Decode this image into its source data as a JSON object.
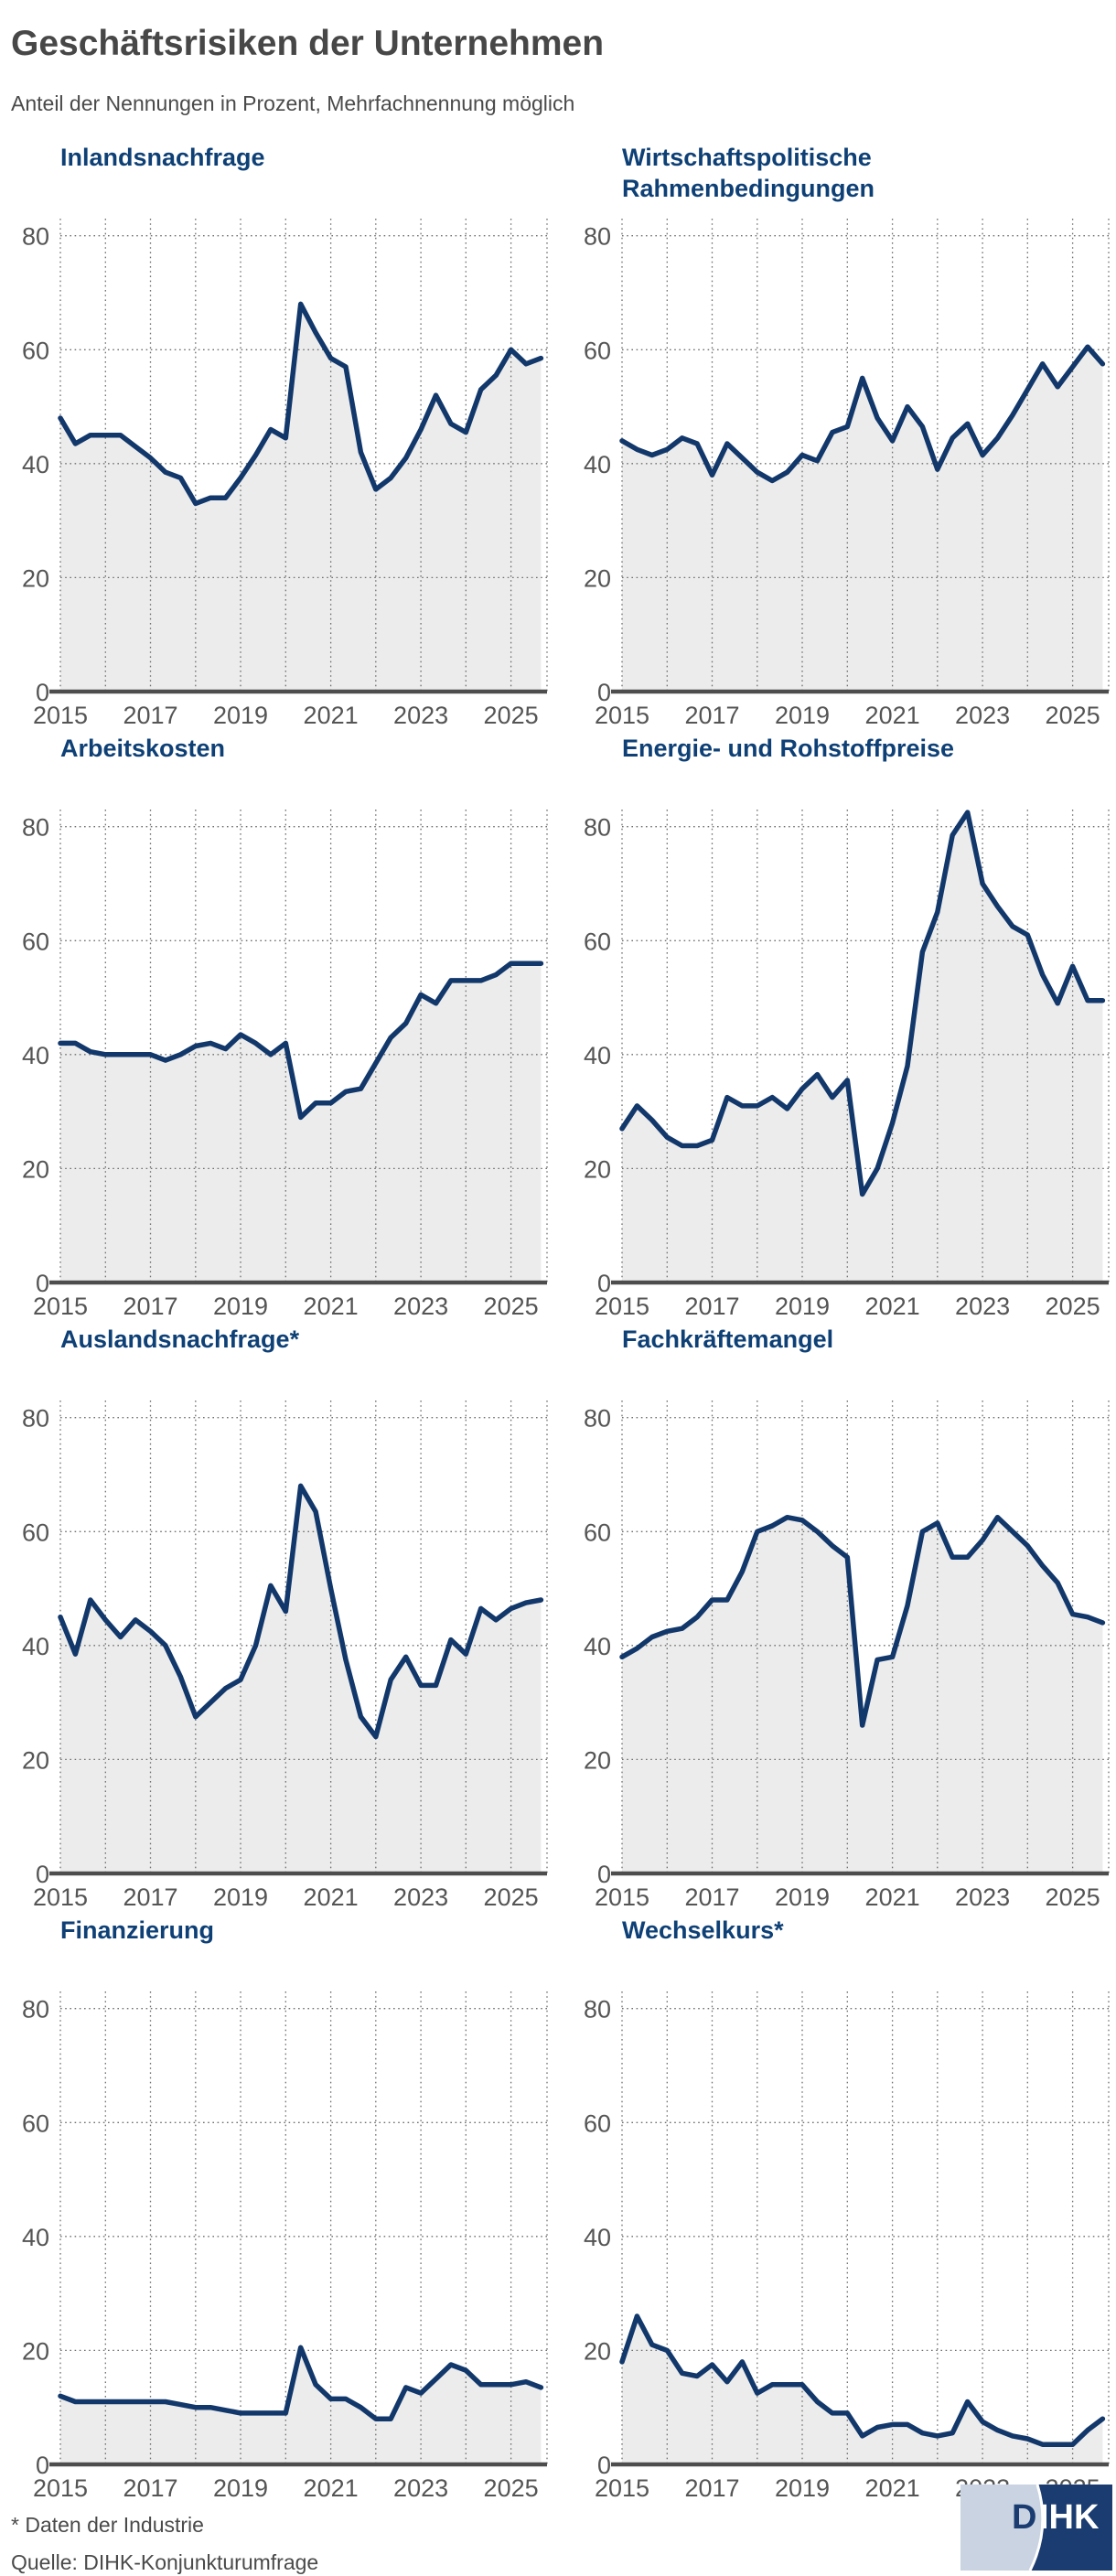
{
  "header": {
    "title": "Geschäftsrisiken der Unternehmen",
    "subtitle": "Anteil der Nennungen in Prozent, Mehrfachnennung möglich"
  },
  "footer": {
    "note": "* Daten der Industrie",
    "source": "Quelle: DIHK-Konjunkturumfrage",
    "logo_d": "D",
    "logo_ihk": "IHK"
  },
  "colors": {
    "line": "#12386b",
    "area": "#ececec",
    "grid": "#6f6f6f",
    "axis_text": "#555555",
    "baseline": "#4d4d4d",
    "panel_title": "#0e4076",
    "header_text": "#474747",
    "logo_light": "#c9d3e2",
    "logo_dark": "#1b3c70"
  },
  "axes": {
    "y_ticks": [
      0,
      20,
      40,
      60,
      80
    ],
    "x_ticks": [
      2015,
      2017,
      2019,
      2021,
      2023,
      2025
    ],
    "grid_year_start": 2015,
    "grid_year_end": 2025,
    "ylim": [
      0,
      83
    ],
    "xlim": [
      2015,
      2025.8
    ]
  },
  "chart_data": [
    {
      "type": "area",
      "title": "Inlandsnachfrage",
      "x_start": 2015,
      "x_step": 0.33333,
      "values": [
        48,
        43.5,
        45,
        45,
        45,
        43,
        41,
        38.5,
        37.5,
        33,
        34,
        34,
        37.5,
        41.5,
        46,
        44.5,
        68,
        63,
        58.5,
        57,
        42,
        35.5,
        37.5,
        41,
        46,
        52,
        47,
        45.5,
        53,
        55.5,
        60,
        57.5,
        58.5
      ]
    },
    {
      "type": "area",
      "title": "Wirtschaftspolitische\nRahmenbedingungen",
      "x_start": 2015,
      "x_step": 0.33333,
      "values": [
        44,
        42.5,
        41.5,
        42.5,
        44.5,
        43.5,
        38,
        43.5,
        41,
        38.5,
        37,
        38.5,
        41.5,
        40.5,
        45.5,
        46.5,
        55,
        48,
        44,
        50,
        46.5,
        39,
        44.5,
        47,
        41.5,
        44.5,
        48.5,
        53,
        57.5,
        53.5,
        57,
        60.5,
        57.5
      ]
    },
    {
      "type": "area",
      "title": "Arbeitskosten",
      "x_start": 2015,
      "x_step": 0.33333,
      "values": [
        42,
        42,
        40.5,
        40,
        40,
        40,
        40,
        39,
        40,
        41.5,
        42,
        41,
        43.5,
        42,
        40,
        42,
        29,
        31.5,
        31.5,
        33.5,
        34,
        38.5,
        43,
        45.5,
        50.5,
        49,
        53,
        53,
        53,
        54,
        56,
        56,
        56
      ]
    },
    {
      "type": "area",
      "title": "Energie- und Rohstoffpreise",
      "x_start": 2015,
      "x_step": 0.33333,
      "values": [
        27,
        31,
        28.5,
        25.5,
        24,
        24,
        25,
        32.5,
        31,
        31,
        32.5,
        30.5,
        34,
        36.5,
        32.5,
        35.5,
        15.5,
        20,
        28,
        38,
        58,
        65,
        78.5,
        82.5,
        70,
        66,
        62.5,
        61,
        54,
        49,
        55.5,
        49.5,
        49.5
      ]
    },
    {
      "type": "area",
      "title": "Auslandsnachfrage*",
      "x_start": 2015,
      "x_step": 0.33333,
      "values": [
        45,
        38.5,
        48,
        44.5,
        41.5,
        44.5,
        42.5,
        40,
        34.5,
        27.5,
        30,
        32.5,
        34,
        40,
        50.5,
        46,
        68,
        63.5,
        50,
        37.5,
        27.5,
        24,
        34,
        38,
        33,
        33,
        41,
        38.5,
        46.5,
        44.5,
        46.5,
        47.5,
        48
      ]
    },
    {
      "type": "area",
      "title": "Fachkräftemangel",
      "x_start": 2015,
      "x_step": 0.33333,
      "values": [
        38,
        39.5,
        41.5,
        42.5,
        43,
        45,
        48,
        48,
        53,
        60,
        61,
        62.5,
        62,
        60,
        57.5,
        55.5,
        26,
        37.5,
        38,
        47,
        60,
        61.5,
        55.5,
        55.5,
        58.5,
        62.5,
        60,
        57.5,
        54,
        51,
        45.5,
        45,
        44
      ]
    },
    {
      "type": "area",
      "title": "Finanzierung",
      "x_start": 2015,
      "x_step": 0.33333,
      "values": [
        12,
        11,
        11,
        11,
        11,
        11,
        11,
        11,
        10.5,
        10,
        10,
        9.5,
        9,
        9,
        9,
        9,
        20.5,
        14,
        11.5,
        11.5,
        10,
        8,
        8,
        13.5,
        12.5,
        15,
        17.5,
        16.5,
        14,
        14,
        14,
        14.5,
        13.5
      ]
    },
    {
      "type": "area",
      "title": "Wechselkurs*",
      "x_start": 2015,
      "x_step": 0.33333,
      "values": [
        18,
        26,
        21,
        20,
        16,
        15.5,
        17.5,
        14.5,
        18,
        12.5,
        14,
        14,
        14,
        11,
        9,
        9,
        5,
        6.5,
        7,
        7,
        5.5,
        5,
        5.5,
        11,
        7.5,
        6,
        5,
        4.5,
        3.5,
        3.5,
        3.5,
        6,
        8
      ]
    }
  ]
}
